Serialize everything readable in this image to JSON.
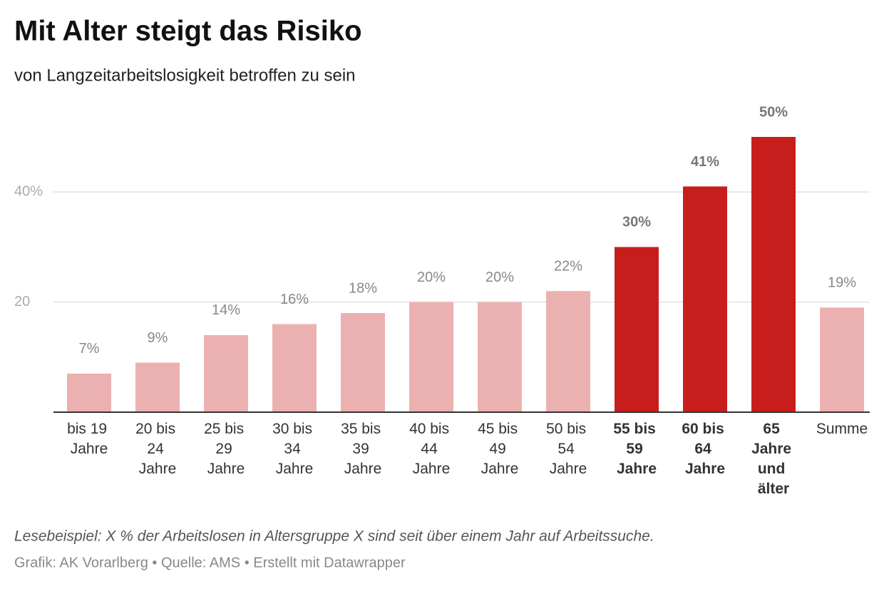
{
  "chart_data": {
    "type": "bar",
    "title": "Mit Alter steigt das Risiko",
    "subtitle": "von Langzeitarbeitslosigkeit betroffen zu sein",
    "categories": [
      "bis 19 Jahre",
      "20 bis 24 Jahre",
      "25 bis 29 Jahre",
      "30 bis 34 Jahre",
      "35 bis 39 Jahre",
      "40 bis 44 Jahre",
      "45 bis 49 Jahre",
      "50 bis 54 Jahre",
      "55 bis 59 Jahre",
      "60 bis 64 Jahre",
      "65 Jahre und älter",
      "Summe"
    ],
    "values": [
      7,
      9,
      14,
      16,
      18,
      20,
      20,
      22,
      30,
      41,
      50,
      19
    ],
    "value_labels": [
      "7%",
      "9%",
      "14%",
      "16%",
      "18%",
      "20%",
      "20%",
      "22%",
      "30%",
      "41%",
      "50%",
      "19%"
    ],
    "colors": [
      "#ebb1b0",
      "#ebb1b0",
      "#ebb1b0",
      "#ebb1b0",
      "#ebb1b0",
      "#ebb1b0",
      "#ebb1b0",
      "#ebb1b0",
      "#c71e1d",
      "#c71e1d",
      "#c71e1d",
      "#ebb1b0"
    ],
    "highlight_color": "#c71e1d",
    "ylim": [
      0,
      50
    ],
    "yticks": [
      20,
      {
        "value": 40,
        "label": "40%"
      }
    ],
    "grid": true,
    "note": "Lesebeispiel: X % der Arbeitslosen in Altersgruppe X sind seit über einem Jahr auf Arbeitssuche.",
    "source": "Grafik: AK Vorarlberg • Quelle: AMS • Erstellt mit Datawrapper"
  }
}
